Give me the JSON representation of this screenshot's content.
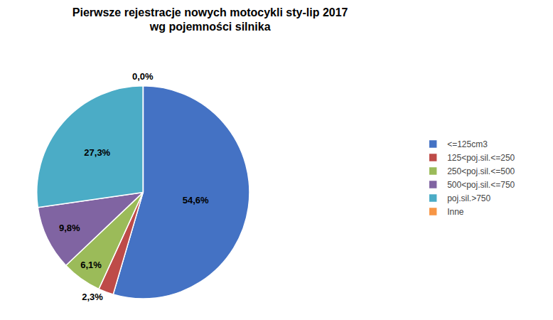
{
  "chart_data": {
    "type": "pie",
    "title": "Pierwsze rejestracje nowych motocykli sty-lip 2017\nwg pojemności silnika",
    "categories": [
      "<=125cm3",
      "125<poj.sil.<=250",
      "250<poj.sil.<=500",
      "500<poj.sil.<=750",
      "poj.sil.>750",
      "Inne"
    ],
    "values": [
      54.6,
      2.3,
      6.1,
      9.8,
      27.3,
      0.0
    ],
    "value_labels": [
      "54,6%",
      "2,3%",
      "6,1%",
      "9,8%",
      "27,3%",
      "0,0%"
    ],
    "colors": [
      "#4472c4",
      "#be4b48",
      "#9bbb59",
      "#8064a2",
      "#4bacc6",
      "#f79646"
    ],
    "data_labels": true,
    "legend": "right"
  }
}
